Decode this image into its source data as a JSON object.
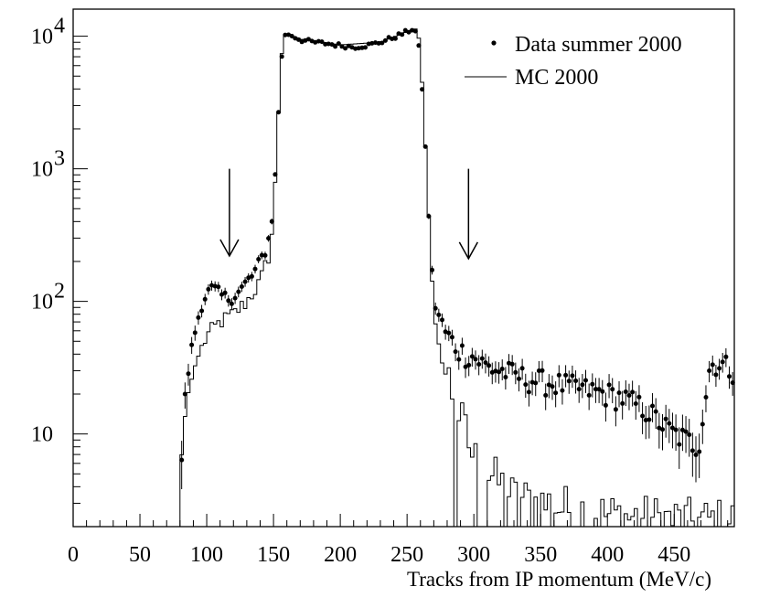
{
  "chart_data": {
    "type": "histogram",
    "title": "",
    "xlabel": "Tracks from IP momentum (MeV/c)",
    "ylabel": "",
    "xlim": [
      0,
      495
    ],
    "ylim": [
      2,
      16000
    ],
    "yscale": "log",
    "grid": false,
    "legend_position": "top-right",
    "x_ticks": [
      "0",
      "50",
      "100",
      "150",
      "200",
      "250",
      "300",
      "350",
      "400",
      "450"
    ],
    "y_ticks": [
      {
        "value": 10,
        "base": "10",
        "exp": ""
      },
      {
        "value": 100,
        "base": "10",
        "exp": "2"
      },
      {
        "value": 1000,
        "base": "10",
        "exp": "3"
      },
      {
        "value": 10000,
        "base": "10",
        "exp": "4"
      }
    ],
    "bin_width": 2.5,
    "series": [
      {
        "name": "Data summer 2000",
        "style": "points-with-errors",
        "color": "#000000"
      },
      {
        "name": "MC 2000",
        "style": "step-line",
        "color": "#000000"
      }
    ],
    "annotations": [
      {
        "type": "arrow-down",
        "x": 117,
        "y_from": 1000,
        "y_to": 220
      },
      {
        "type": "arrow-down",
        "x": 296,
        "y_from": 1000,
        "y_to": 210
      }
    ],
    "profile_points": [
      [
        80,
        2.5
      ],
      [
        82,
        12
      ],
      [
        85,
        25
      ],
      [
        88,
        40
      ],
      [
        92,
        65
      ],
      [
        96,
        95
      ],
      [
        100,
        115
      ],
      [
        105,
        125
      ],
      [
        110,
        112
      ],
      [
        115,
        105
      ],
      [
        120,
        110
      ],
      [
        125,
        120
      ],
      [
        130,
        140
      ],
      [
        135,
        160
      ],
      [
        140,
        200
      ],
      [
        145,
        260
      ],
      [
        148,
        350
      ],
      [
        151,
        800
      ],
      [
        154,
        3000
      ],
      [
        157,
        9500
      ],
      [
        160,
        10500
      ],
      [
        165,
        10000
      ],
      [
        170,
        9400
      ],
      [
        180,
        9000
      ],
      [
        190,
        8800
      ],
      [
        200,
        8500
      ],
      [
        210,
        8300
      ],
      [
        220,
        8500
      ],
      [
        230,
        9000
      ],
      [
        240,
        9800
      ],
      [
        250,
        10800
      ],
      [
        255,
        11500
      ],
      [
        258,
        10000
      ],
      [
        261,
        4500
      ],
      [
        264,
        1300
      ],
      [
        266,
        500
      ],
      [
        268,
        200
      ],
      [
        271,
        100
      ],
      [
        275,
        70
      ],
      [
        280,
        55
      ],
      [
        290,
        42
      ],
      [
        300,
        38
      ],
      [
        310,
        32
      ],
      [
        320,
        30
      ],
      [
        330,
        28
      ],
      [
        340,
        26
      ],
      [
        350,
        25
      ],
      [
        360,
        24
      ],
      [
        370,
        23
      ],
      [
        380,
        22
      ],
      [
        390,
        21
      ],
      [
        400,
        20
      ],
      [
        410,
        19
      ],
      [
        420,
        17
      ],
      [
        430,
        15
      ],
      [
        440,
        12
      ],
      [
        450,
        10
      ],
      [
        460,
        9
      ],
      [
        468,
        8
      ],
      [
        472,
        15
      ],
      [
        476,
        30
      ],
      [
        480,
        35
      ],
      [
        490,
        32
      ],
      [
        495,
        30
      ]
    ],
    "mc_profile_points": [
      [
        78,
        0.01
      ],
      [
        79.5,
        3
      ],
      [
        82,
        10
      ],
      [
        86,
        20
      ],
      [
        92,
        35
      ],
      [
        100,
        55
      ],
      [
        110,
        70
      ],
      [
        120,
        80
      ],
      [
        130,
        100
      ],
      [
        140,
        140
      ],
      [
        148,
        250
      ],
      [
        151,
        700
      ],
      [
        154,
        3000
      ],
      [
        157,
        10000
      ],
      [
        160,
        10500
      ],
      [
        170,
        9500
      ],
      [
        200,
        8600
      ],
      [
        230,
        9000
      ],
      [
        250,
        10800
      ],
      [
        256,
        11500
      ],
      [
        259,
        9500
      ],
      [
        262,
        3500
      ],
      [
        265,
        800
      ],
      [
        268,
        180
      ],
      [
        271,
        70
      ],
      [
        276,
        35
      ],
      [
        282,
        22
      ],
      [
        290,
        12
      ],
      [
        300,
        6
      ],
      [
        330,
        3
      ],
      [
        400,
        2.2
      ],
      [
        470,
        2
      ],
      [
        495,
        2
      ]
    ]
  }
}
